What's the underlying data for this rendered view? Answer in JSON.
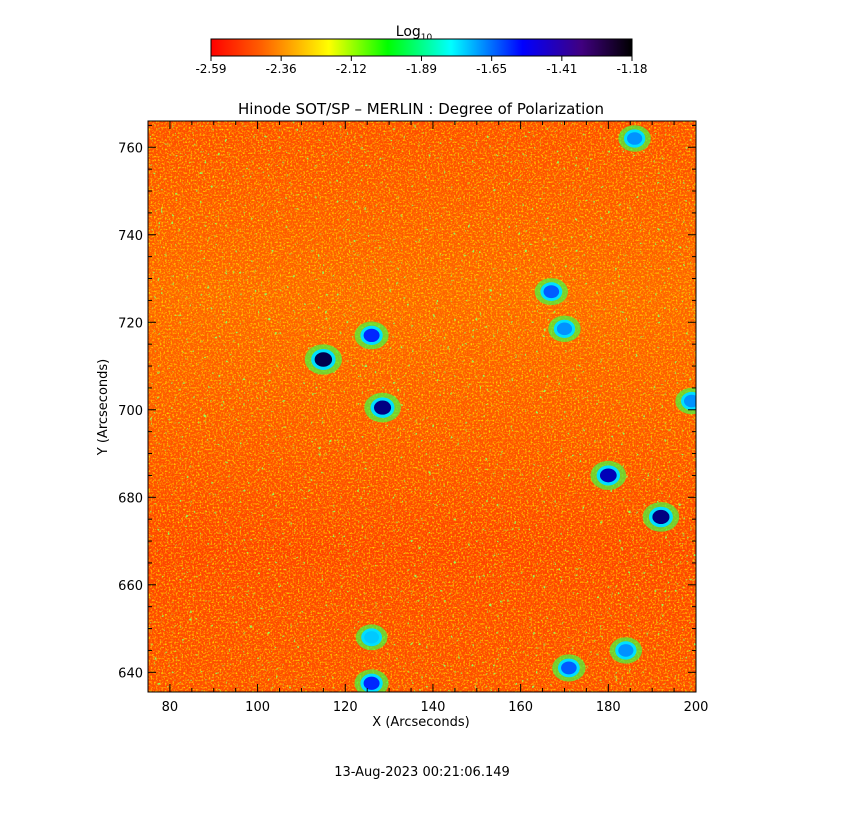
{
  "chart_data": {
    "type": "heatmap",
    "title": "Hinode SOT/SP – MERLIN : Degree of Polarization",
    "xlabel": "X (Arcseconds)",
    "ylabel": "Y (Arcseconds)",
    "xlim": [
      75,
      200
    ],
    "ylim": [
      635.5,
      766
    ],
    "xticks": [
      80,
      100,
      120,
      140,
      160,
      180,
      200
    ],
    "yticks": [
      640,
      660,
      680,
      700,
      720,
      740,
      760
    ],
    "colorbar": {
      "label_base": "Log",
      "label_sub": "10",
      "ticks": [
        "-2.59",
        "-2.36",
        "-2.12",
        "-1.89",
        "-1.65",
        "-1.41",
        "-1.18"
      ],
      "range": [
        -2.59,
        -1.18
      ],
      "colormap": [
        "#ff0000",
        "#ff8000",
        "#ffff00",
        "#00ff00",
        "#00ffff",
        "#0000ff",
        "#000000"
      ]
    },
    "background_value": -2.45,
    "dark_regions": [
      {
        "x": 115,
        "y": 711.5,
        "value": -1.25
      },
      {
        "x": 128.5,
        "y": 700.5,
        "value": -1.3
      },
      {
        "x": 126,
        "y": 717,
        "value": -1.45
      },
      {
        "x": 180,
        "y": 685,
        "value": -1.35
      },
      {
        "x": 192,
        "y": 675.5,
        "value": -1.3
      },
      {
        "x": 167,
        "y": 727,
        "value": -1.5
      },
      {
        "x": 126,
        "y": 637.5,
        "value": -1.45
      },
      {
        "x": 171,
        "y": 641,
        "value": -1.5
      },
      {
        "x": 184,
        "y": 645,
        "value": -1.55
      },
      {
        "x": 186,
        "y": 762,
        "value": -1.55
      },
      {
        "x": 199,
        "y": 702,
        "value": -1.55
      },
      {
        "x": 170,
        "y": 718.5,
        "value": -1.55
      },
      {
        "x": 126,
        "y": 648,
        "value": -1.6
      }
    ],
    "timestamp": "13-Aug-2023 00:21:06.149"
  }
}
